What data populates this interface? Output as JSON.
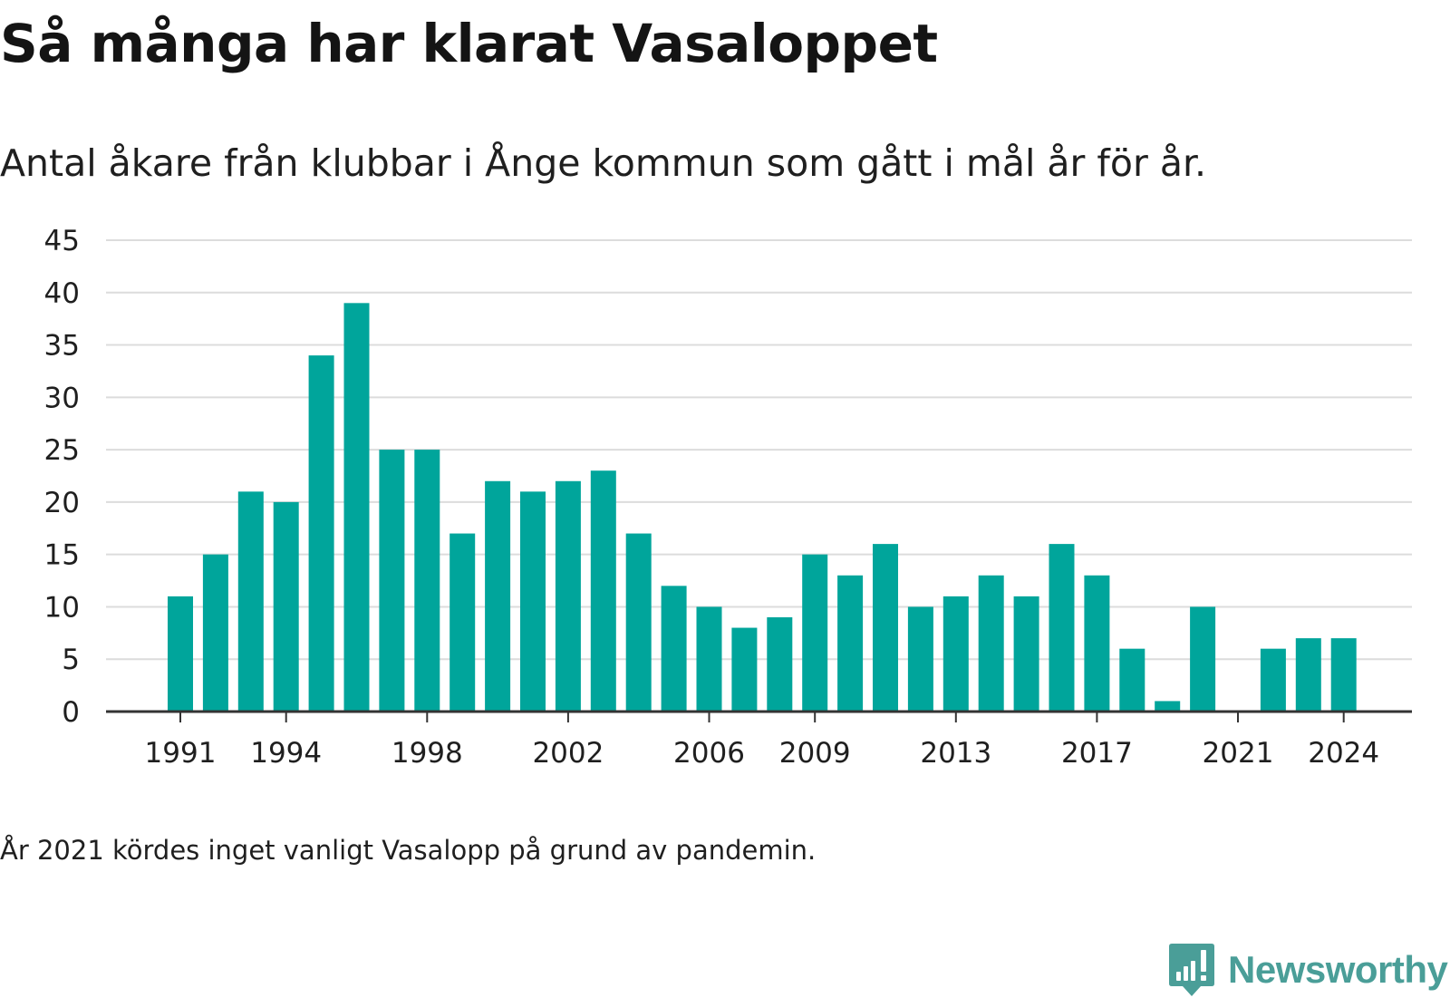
{
  "header": {
    "title": "Så många har klarat Vasaloppet",
    "subtitle": "Antal åkare från klubbar i Ånge kommun som gått i mål år för år."
  },
  "footer": {
    "note": "År 2021 kördes inget vanligt Vasalopp på grund av pandemin.",
    "brand": "Newsworthy",
    "brand_icon": "newsworthy-logo-icon"
  },
  "colors": {
    "bar": "#00a59b",
    "gridline": "#dcdcdc",
    "axis": "#333333",
    "text": "#1f1f1f",
    "brand": "#4a9e98"
  },
  "chart_data": {
    "type": "bar",
    "title": "Så många har klarat Vasaloppet",
    "subtitle": "Antal åkare från klubbar i Ånge kommun som gått i mål år för år.",
    "xlabel": "",
    "ylabel": "",
    "categories": [
      1991,
      1992,
      1993,
      1994,
      1995,
      1996,
      1997,
      1998,
      1999,
      2000,
      2001,
      2002,
      2003,
      2004,
      2005,
      2006,
      2007,
      2008,
      2009,
      2010,
      2011,
      2012,
      2013,
      2014,
      2015,
      2016,
      2017,
      2018,
      2019,
      2020,
      2021,
      2022,
      2023,
      2024
    ],
    "values": [
      11,
      15,
      21,
      20,
      34,
      39,
      25,
      25,
      17,
      22,
      21,
      22,
      23,
      17,
      12,
      10,
      8,
      9,
      15,
      13,
      16,
      10,
      11,
      13,
      11,
      16,
      13,
      6,
      1,
      10,
      0,
      6,
      7,
      7
    ],
    "x_tick_labels": [
      "1991",
      "1994",
      "1998",
      "2002",
      "2006",
      "2009",
      "2013",
      "2017",
      "2021",
      "2024"
    ],
    "y_ticks": [
      0,
      5,
      10,
      15,
      20,
      25,
      30,
      35,
      40,
      45
    ],
    "ylim": [
      0,
      45
    ],
    "grid": true,
    "legend": "none"
  }
}
